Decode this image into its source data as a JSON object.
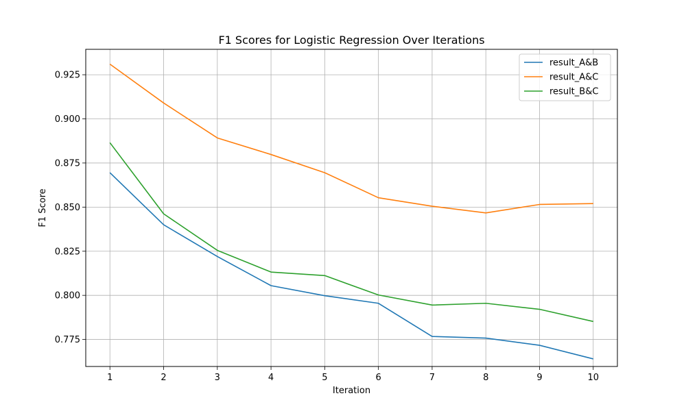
{
  "chart_data": {
    "type": "line",
    "title": "F1 Scores for Logistic Regression Over Iterations",
    "xlabel": "Iteration",
    "ylabel": "F1 Score",
    "x": [
      1,
      2,
      3,
      4,
      5,
      6,
      7,
      8,
      9,
      10
    ],
    "xlim": [
      0.55,
      10.45
    ],
    "ylim": [
      0.7597,
      0.9394
    ],
    "yticks": [
      0.775,
      0.8,
      0.825,
      0.85,
      0.875,
      0.9,
      0.925
    ],
    "ytick_labels": [
      "0.775",
      "0.800",
      "0.825",
      "0.850",
      "0.875",
      "0.900",
      "0.925"
    ],
    "xticks": [
      1,
      2,
      3,
      4,
      5,
      6,
      7,
      8,
      9,
      10
    ],
    "xtick_labels": [
      "1",
      "2",
      "3",
      "4",
      "5",
      "6",
      "7",
      "8",
      "9",
      "10"
    ],
    "grid": true,
    "legend_position": "top-right",
    "series": [
      {
        "name": "result_A&B",
        "color": "#1f77b4",
        "values": [
          0.8695,
          0.84,
          0.822,
          0.8055,
          0.7998,
          0.7955,
          0.7767,
          0.7758,
          0.7717,
          0.764
        ]
      },
      {
        "name": "result_A&C",
        "color": "#ff7f0e",
        "values": [
          0.931,
          0.909,
          0.8892,
          0.8798,
          0.8695,
          0.8553,
          0.8505,
          0.8467,
          0.8515,
          0.852
        ]
      },
      {
        "name": "result_B&C",
        "color": "#2ca02c",
        "values": [
          0.8865,
          0.8462,
          0.8255,
          0.8132,
          0.8112,
          0.8002,
          0.7945,
          0.7955,
          0.7921,
          0.7852
        ]
      }
    ]
  }
}
